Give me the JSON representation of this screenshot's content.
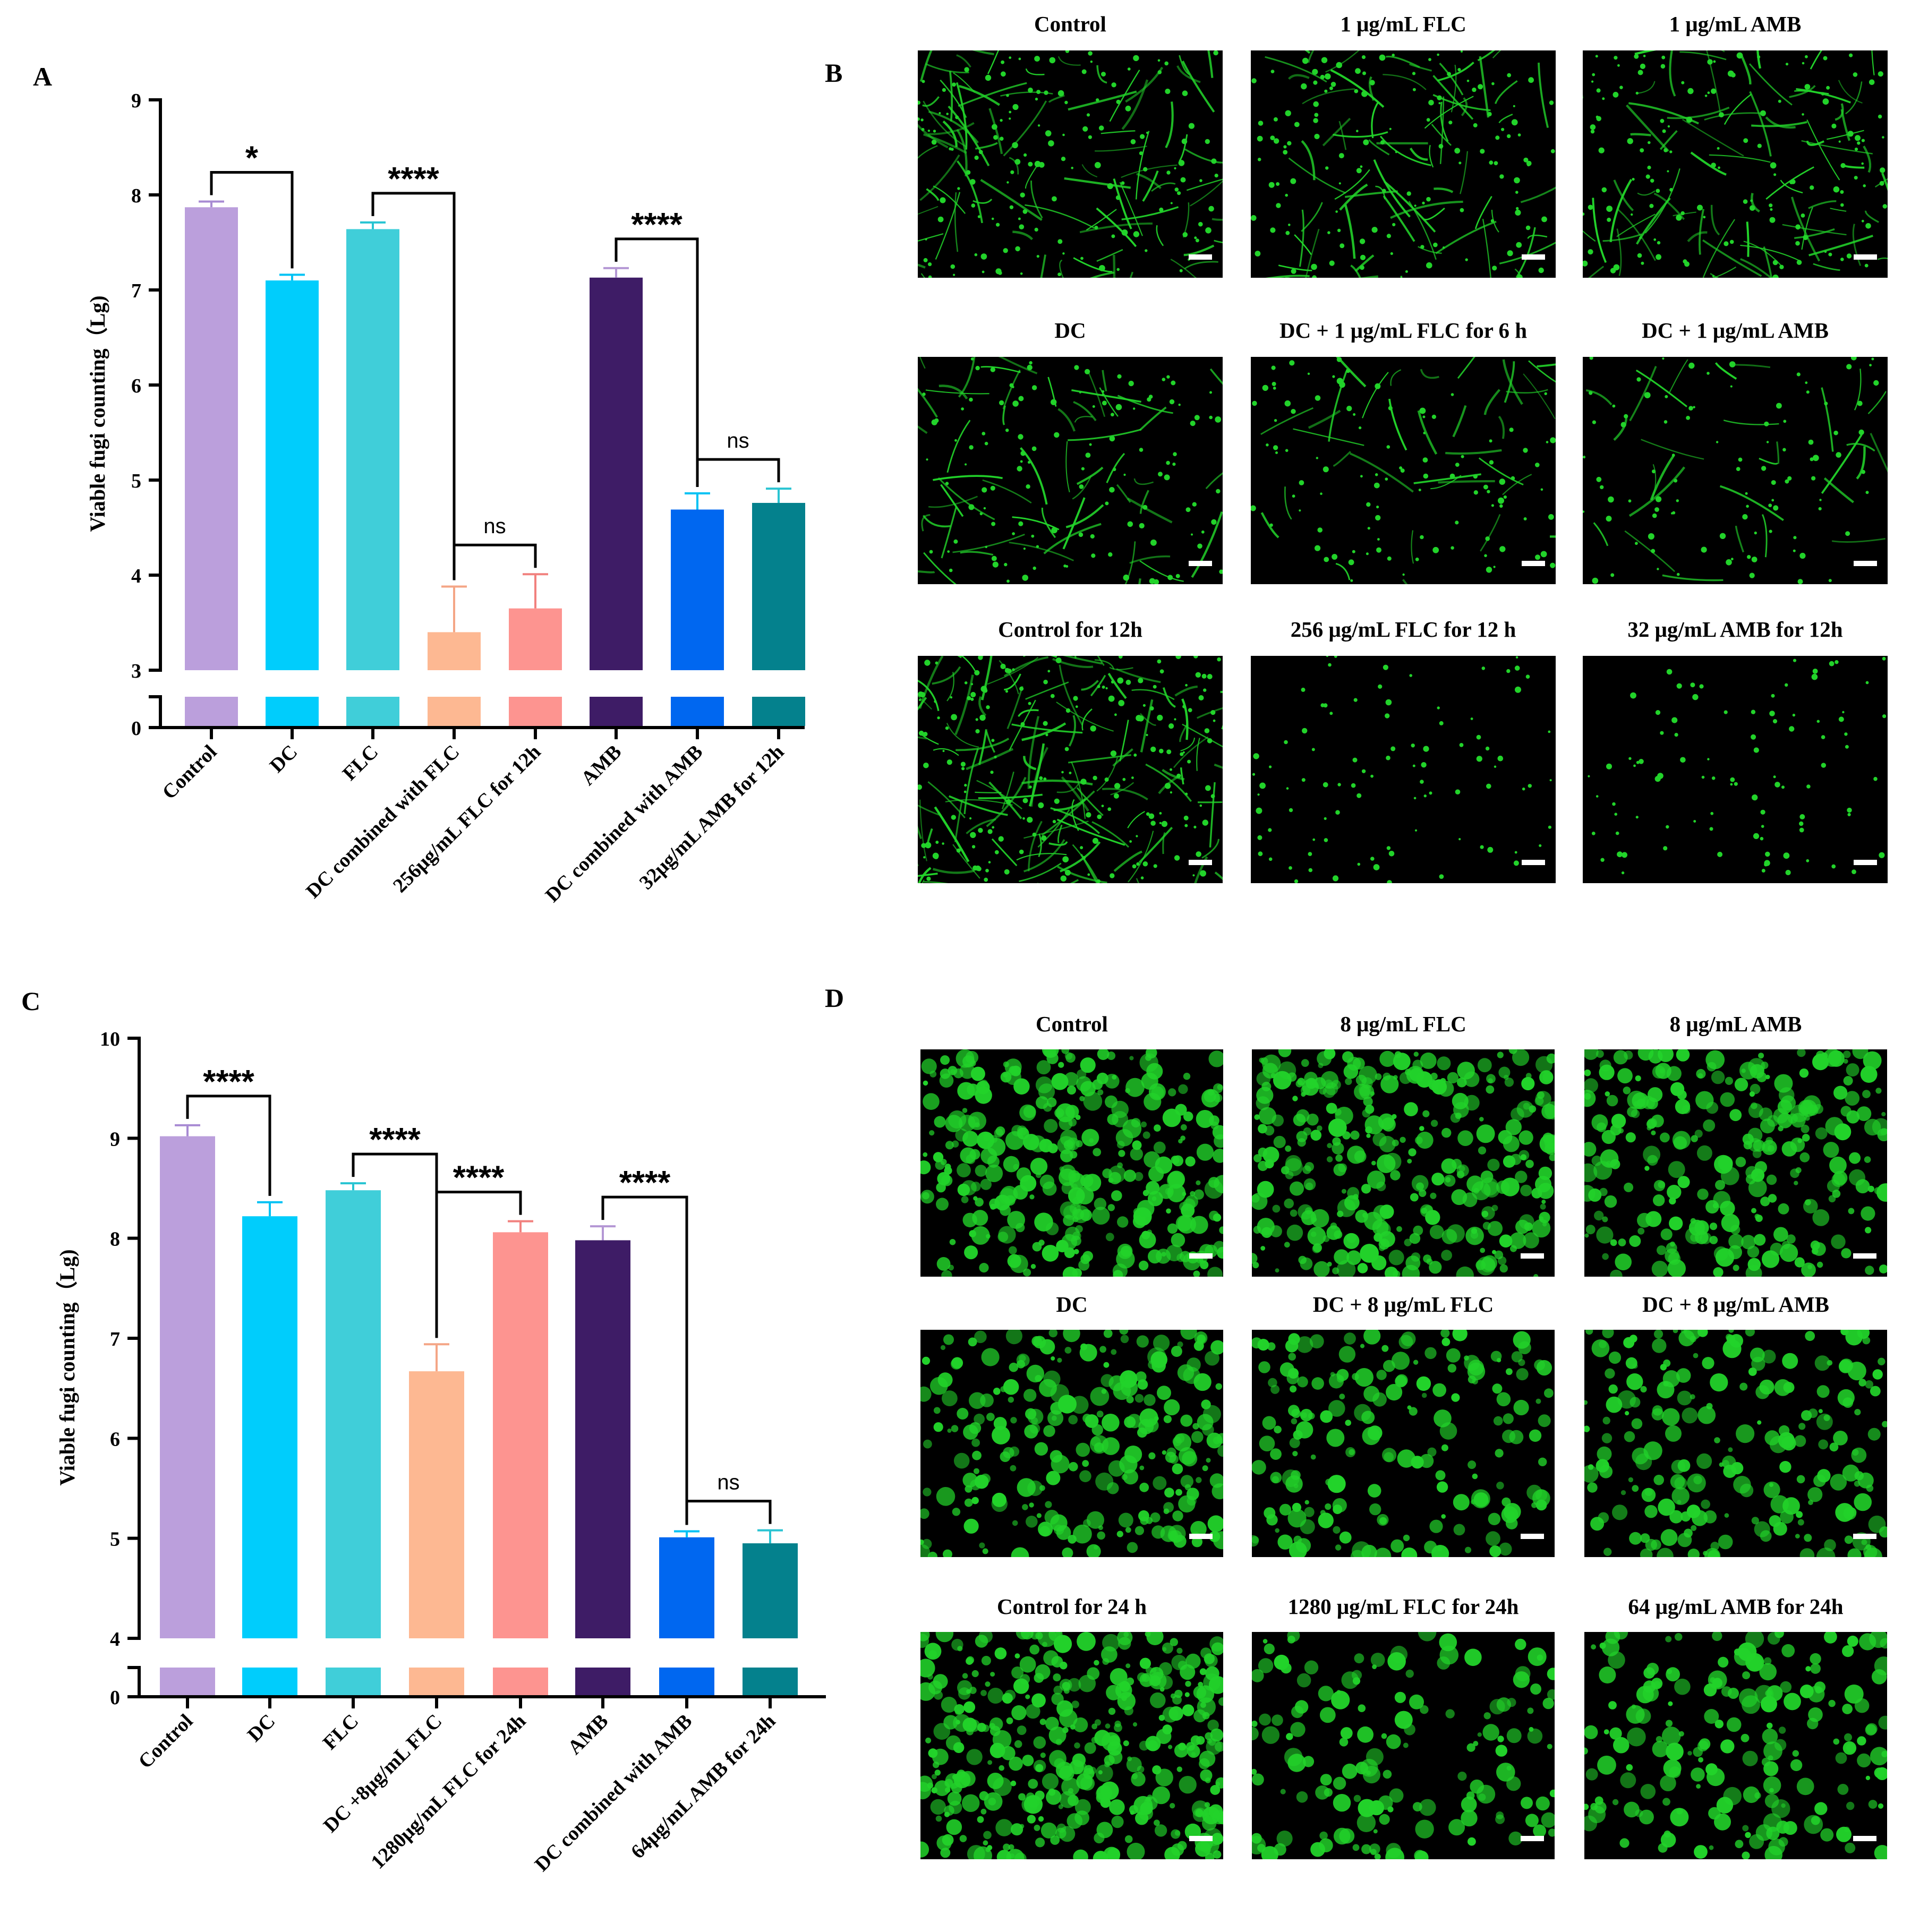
{
  "panels": {
    "a": "A",
    "b": "B",
    "c": "C",
    "d": "D"
  },
  "chart_data": [
    {
      "type": "bar",
      "panel": "A",
      "ylabel": "Viable fugi counting（Lg)",
      "xlabel": "",
      "ylim": [
        0,
        9
      ],
      "axis_break": [
        0,
        3
      ],
      "yticks": [
        0,
        3,
        4,
        5,
        6,
        7,
        8,
        9
      ],
      "categories": [
        "Control",
        "DC",
        "FLC",
        "DC combined with FLC",
        "256μg/mL FLC for 12h",
        "AMB",
        "DC combined with AMB",
        "32μg/mL AMB for 12h"
      ],
      "values": [
        7.87,
        7.1,
        7.64,
        3.4,
        3.65,
        7.13,
        4.69,
        4.76
      ],
      "errors": [
        0.06,
        0.06,
        0.07,
        0.48,
        0.36,
        0.1,
        0.17,
        0.15
      ],
      "colors": [
        "#bb9fdc",
        "#00cdfc",
        "#40ced9",
        "#fdb892",
        "#fd9490",
        "#3e1c66",
        "#0067f0",
        "#04818d"
      ],
      "error_colors": [
        "#a88bd3",
        "#00c2f4",
        "#28c4d2",
        "#f4a686",
        "#f1817e",
        "#b497d4",
        "#00c2f4",
        "#2ac4d2"
      ],
      "significance": [
        {
          "from": 0,
          "to": 1,
          "label": "*"
        },
        {
          "from": 2,
          "to": 3,
          "label": "****"
        },
        {
          "from": 3,
          "to": 4,
          "label": "ns"
        },
        {
          "from": 5,
          "to": 6,
          "label": "****"
        },
        {
          "from": 6,
          "to": 7,
          "label": "ns"
        }
      ]
    },
    {
      "type": "bar",
      "panel": "C",
      "ylabel": "Viable fugi counting（Lg)",
      "xlabel": "",
      "ylim": [
        0,
        10
      ],
      "axis_break": [
        0,
        4
      ],
      "yticks": [
        0,
        4,
        5,
        6,
        7,
        8,
        9,
        10
      ],
      "categories": [
        "Control",
        "DC",
        "FLC",
        "DC +8μg/mL FLC",
        "1280μg/mL FLC for 24h",
        "AMB",
        "DC combined with AMB",
        "64μg/mL AMB for 24h"
      ],
      "values": [
        9.02,
        8.22,
        8.48,
        6.67,
        8.06,
        7.98,
        5.01,
        4.95
      ],
      "errors": [
        0.11,
        0.14,
        0.07,
        0.27,
        0.11,
        0.14,
        0.06,
        0.13
      ],
      "colors": [
        "#bb9fdc",
        "#00cdfc",
        "#40ced9",
        "#fdb892",
        "#fd9490",
        "#3e1c66",
        "#0067f0",
        "#04818d"
      ],
      "error_colors": [
        "#a88bd3",
        "#00c2f4",
        "#28c4d2",
        "#f4a686",
        "#f1817e",
        "#b497d4",
        "#00c2f4",
        "#2ac4d2"
      ],
      "significance": [
        {
          "from": 0,
          "to": 1,
          "label": "****"
        },
        {
          "from": 2,
          "to": 3,
          "label": "****"
        },
        {
          "from": 3,
          "to": 4,
          "label": "****"
        },
        {
          "from": 5,
          "to": 6,
          "label": "****"
        },
        {
          "from": 6,
          "to": 7,
          "label": "ns"
        }
      ]
    }
  ],
  "micrographs": {
    "b": [
      {
        "title": "Control",
        "density": 0.55,
        "style": "hyphae"
      },
      {
        "title": "1 μg/mL FLC",
        "density": 0.45,
        "style": "hyphae"
      },
      {
        "title": "1 μg/mL AMB",
        "density": 0.5,
        "style": "hyphae"
      },
      {
        "title": "DC",
        "density": 0.35,
        "style": "hyphae"
      },
      {
        "title": "DC + 1 μg/mL FLC for 6 h",
        "density": 0.22,
        "style": "hyphae"
      },
      {
        "title": "DC + 1 μg/mL AMB",
        "density": 0.18,
        "style": "hyphae"
      },
      {
        "title": "Control for 12h",
        "density": 0.85,
        "style": "hyphae"
      },
      {
        "title": "256 μg/mL FLC for 12 h",
        "density": 0.15,
        "style": "dots"
      },
      {
        "title": "32 μg/mL AMB for 12h",
        "density": 0.15,
        "style": "dots"
      }
    ],
    "d": [
      {
        "title": "Control",
        "density": 0.8,
        "style": "clumps"
      },
      {
        "title": "8 μg/mL FLC",
        "density": 0.8,
        "style": "clumps"
      },
      {
        "title": "8 μg/mL AMB",
        "density": 0.65,
        "style": "clumps"
      },
      {
        "title": "DC",
        "density": 0.6,
        "style": "clumps"
      },
      {
        "title": "DC + 8 μg/mL FLC",
        "density": 0.45,
        "style": "clumps"
      },
      {
        "title": "DC + 8 μg/mL AMB",
        "density": 0.5,
        "style": "clumps"
      },
      {
        "title": "Control for 24 h",
        "density": 0.9,
        "style": "clumps"
      },
      {
        "title": "1280 μg/mL FLC for 24h",
        "density": 0.35,
        "style": "clumps"
      },
      {
        "title": "64 μg/mL AMB for 24h",
        "density": 0.45,
        "style": "clumps"
      }
    ]
  },
  "colors": {
    "fluorescence": "#22d32a",
    "background": "#000000",
    "axis": "#000000"
  }
}
